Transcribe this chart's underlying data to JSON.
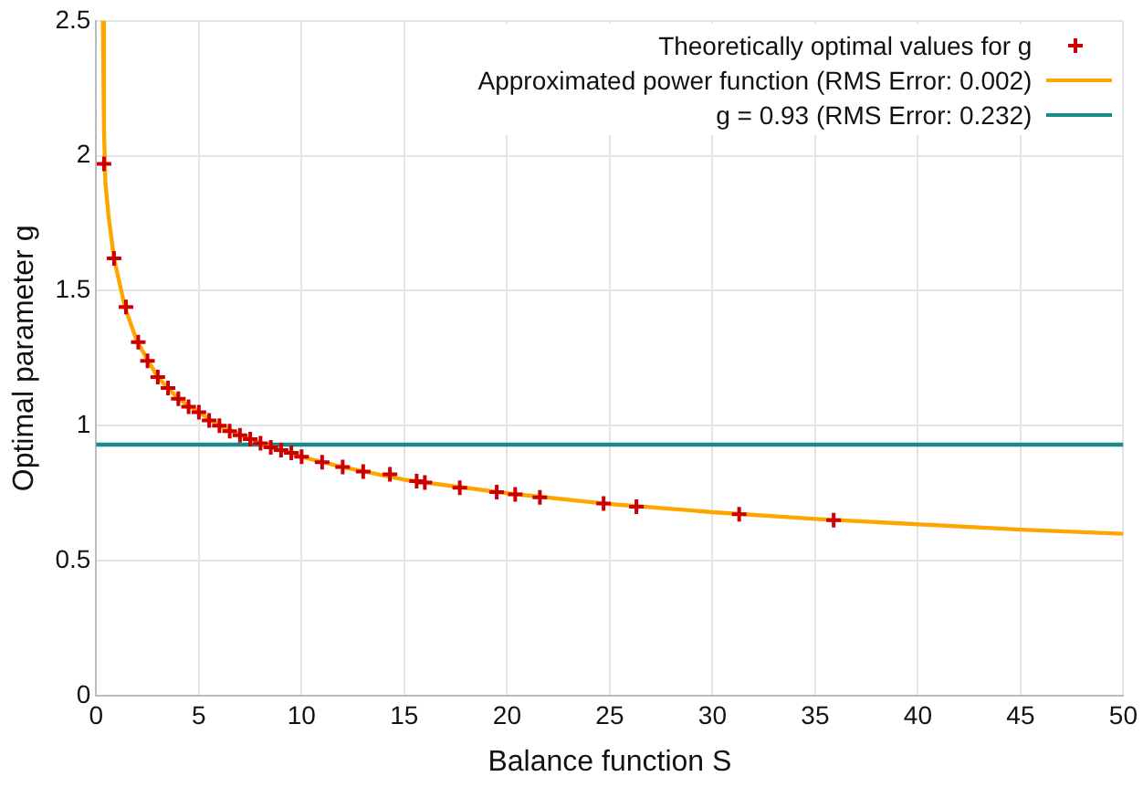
{
  "chart_data": {
    "type": "scatter",
    "xlabel": "Balance function S",
    "ylabel": "Optimal parameter g",
    "xlim": [
      0,
      50
    ],
    "xticks": [
      0,
      5,
      10,
      15,
      20,
      25,
      30,
      35,
      40,
      45,
      50
    ],
    "ylim": [
      0,
      2.5
    ],
    "yticks": [
      0,
      0.5,
      1,
      1.5,
      2,
      2.5
    ],
    "grid": true,
    "legend": "top right",
    "series": [
      {
        "name": "Theoretically optimal values for g",
        "type": "scatter",
        "marker": "cross",
        "color": "#cc0000",
        "x": [
          0.38,
          0.87,
          1.45,
          2.05,
          2.5,
          3,
          3.5,
          4,
          4.5,
          5,
          5.5,
          6,
          6.5,
          7,
          7.5,
          8,
          8.5,
          9,
          9.5,
          10,
          11,
          12,
          13,
          14.3,
          15.6,
          16,
          17.7,
          19.5,
          20.4,
          21.6,
          24.7,
          26.3,
          31.3,
          35.9
        ],
        "values": [
          1.97,
          1.62,
          1.44,
          1.31,
          1.24,
          1.18,
          1.14,
          1.1,
          1.07,
          1.05,
          1.02,
          1.0,
          0.98,
          0.965,
          0.95,
          0.935,
          0.92,
          0.91,
          0.9,
          0.885,
          0.865,
          0.847,
          0.83,
          0.82,
          0.795,
          0.79,
          0.77,
          0.754,
          0.746,
          0.735,
          0.712,
          0.7,
          0.672,
          0.65
        ]
      },
      {
        "name": "Approximated power function (RMS Error: 0.002)",
        "type": "line",
        "marker": "none",
        "color": "#ffa500",
        "x": [
          0.33,
          0.38,
          0.45,
          0.6,
          0.87,
          1.4,
          2,
          3,
          4,
          5,
          6,
          8,
          10,
          12,
          15,
          20,
          25,
          30,
          35,
          40,
          45,
          50
        ],
        "values": [
          2.5,
          2.1,
          1.9,
          1.78,
          1.62,
          1.44,
          1.31,
          1.18,
          1.1,
          1.05,
          1.0,
          0.935,
          0.885,
          0.847,
          0.8,
          0.75,
          0.71,
          0.68,
          0.655,
          0.635,
          0.615,
          0.6
        ]
      },
      {
        "name": "g = 0.93 (RMS Error: 0.232)",
        "type": "line",
        "marker": "none",
        "color": "#1a8a8a",
        "x": [
          0,
          50
        ],
        "values": [
          0.93,
          0.93
        ]
      }
    ]
  }
}
